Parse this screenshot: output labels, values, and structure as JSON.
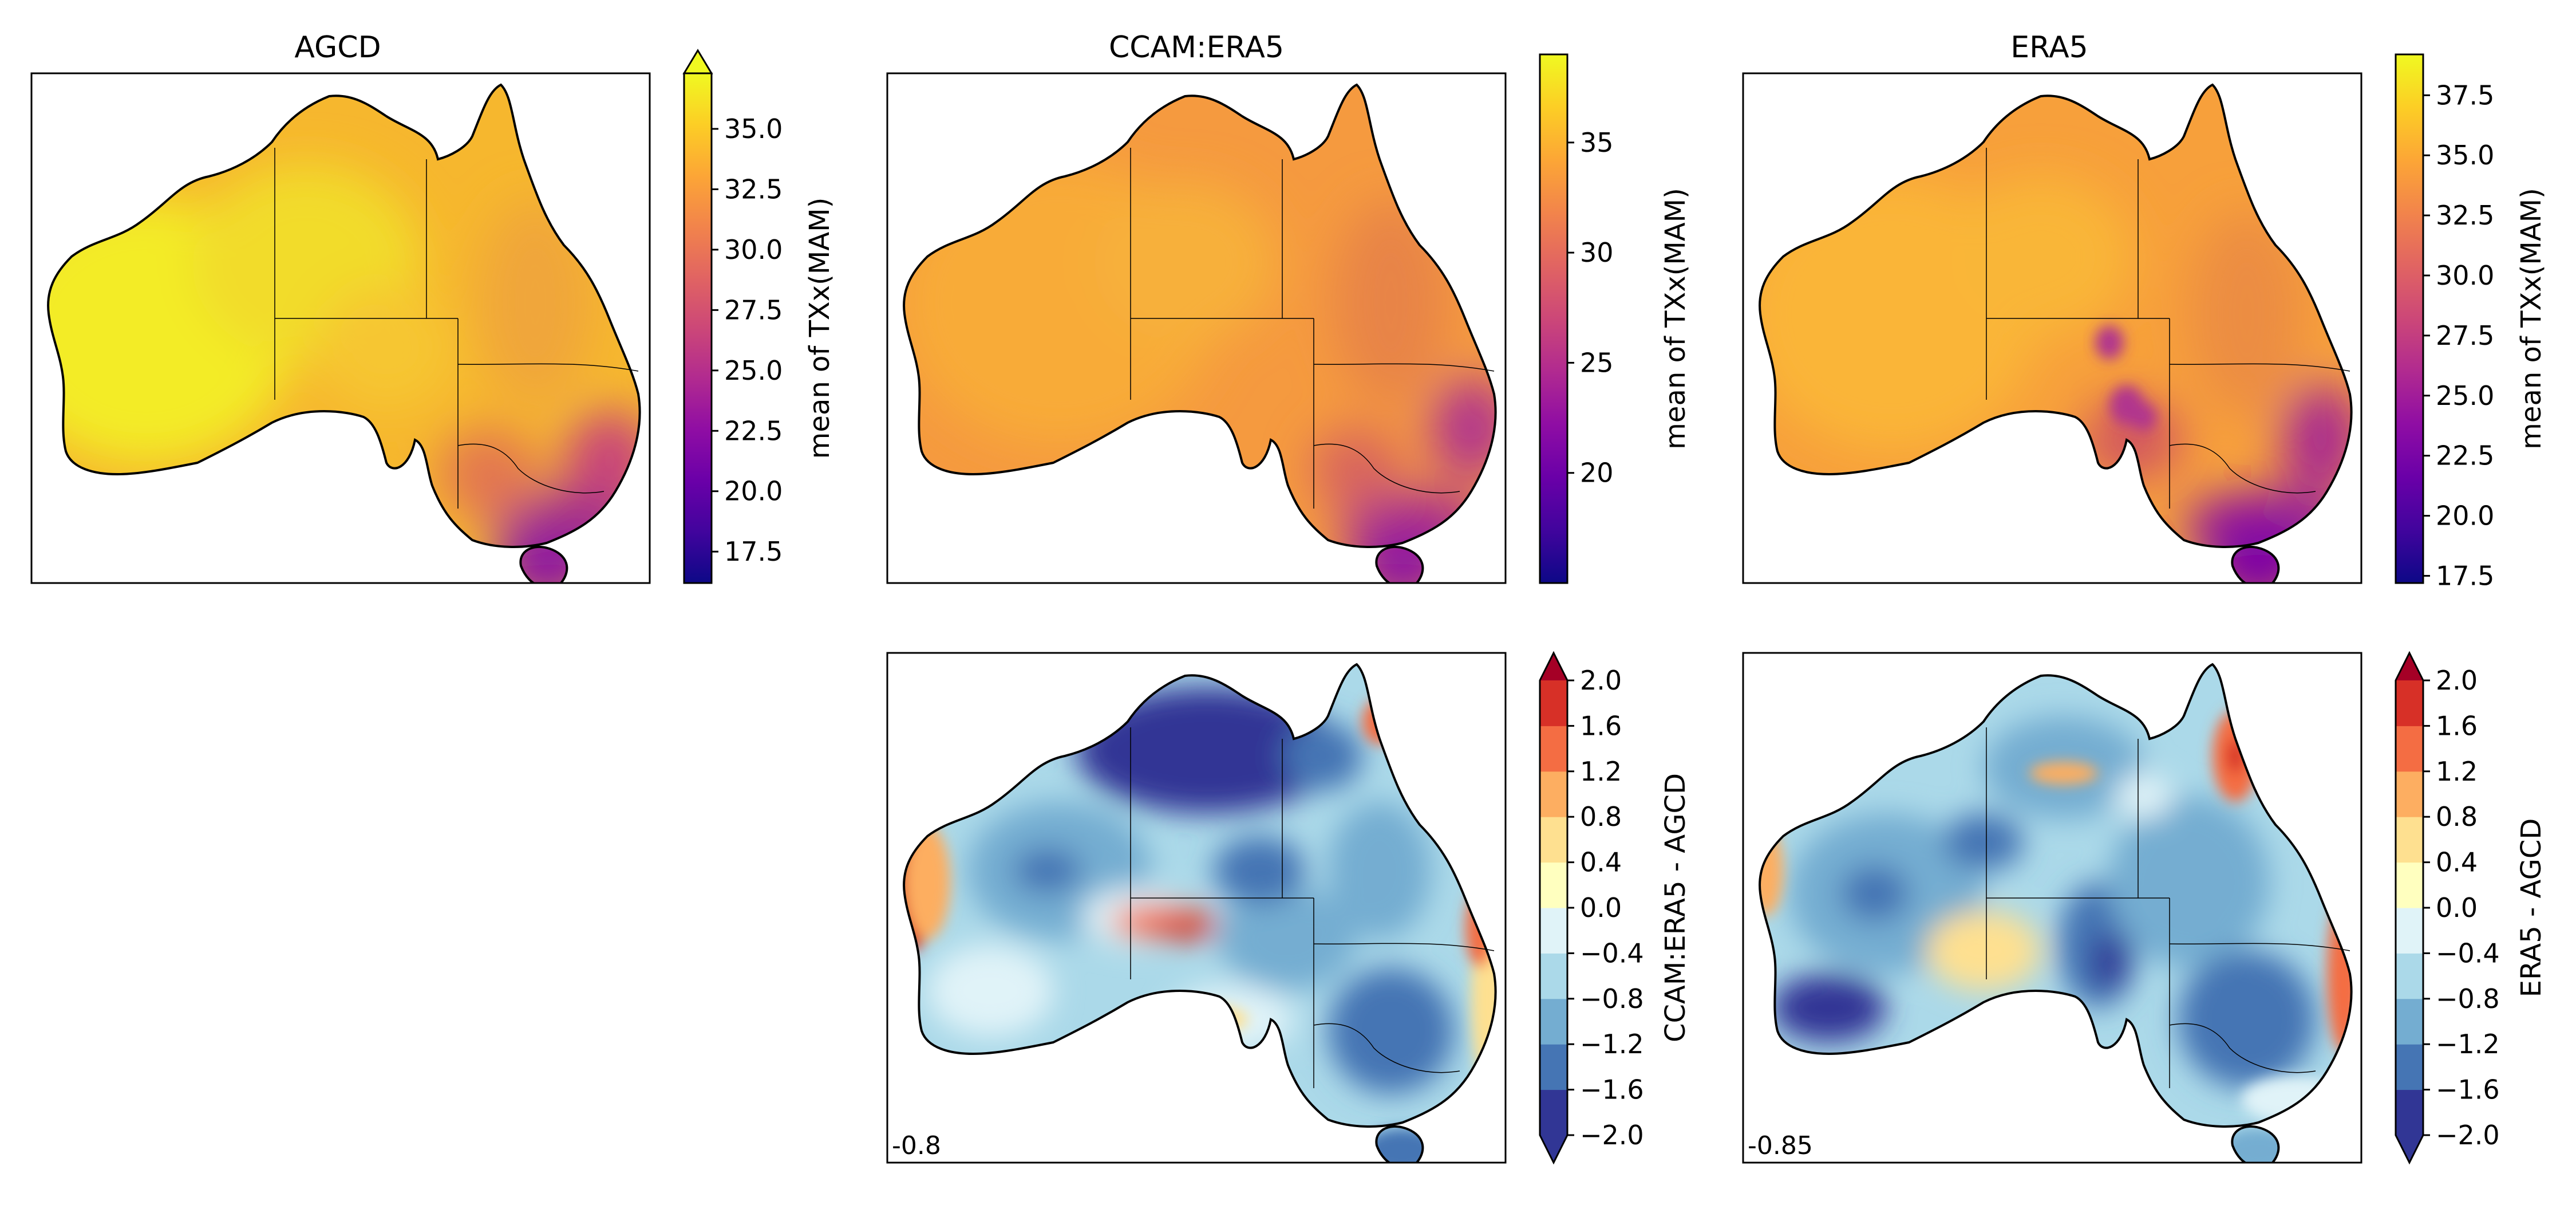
{
  "chart_data": [
    {
      "type": "heatmap",
      "title": "AGCD",
      "colormap": "plasma",
      "colorbar": {
        "label": "mean of TXx(MAM)",
        "range": [
          16.2,
          37.3
        ],
        "ticks": [
          "35.0",
          "32.5",
          "30.0",
          "27.5",
          "25.0",
          "22.5",
          "20.0",
          "17.5"
        ],
        "tick_values": [
          35.0,
          32.5,
          30.0,
          27.5,
          25.0,
          22.5,
          20.0,
          17.5
        ],
        "extend": "max"
      }
    },
    {
      "type": "heatmap",
      "title": "CCAM:ERA5",
      "colormap": "plasma",
      "colorbar": {
        "label": "mean of TXx(MAM)",
        "range": [
          15.0,
          39.0
        ],
        "ticks": [
          "35",
          "30",
          "25",
          "20"
        ],
        "tick_values": [
          35,
          30,
          25,
          20
        ],
        "extend": "neither"
      }
    },
    {
      "type": "heatmap",
      "title": "ERA5",
      "colormap": "plasma",
      "colorbar": {
        "label": "mean of TXx(MAM)",
        "range": [
          17.2,
          39.2
        ],
        "ticks": [
          "37.5",
          "35.0",
          "32.5",
          "30.0",
          "27.5",
          "25.0",
          "22.5",
          "20.0",
          "17.5"
        ],
        "tick_values": [
          37.5,
          35.0,
          32.5,
          30.0,
          27.5,
          25.0,
          22.5,
          20.0,
          17.5
        ],
        "extend": "neither"
      }
    },
    {
      "type": "heatmap",
      "title": "",
      "colormap": "RdYlBu_r (discrete)",
      "annotation": "-0.8",
      "colorbar": {
        "label": "CCAM:ERA5 - AGCD",
        "levels": [
          -2.0,
          -1.6,
          -1.2,
          -0.8,
          -0.4,
          0.0,
          0.4,
          0.8,
          1.2,
          1.6,
          2.0
        ],
        "ticks": [
          "2.0",
          "1.6",
          "1.2",
          "0.8",
          "0.4",
          "0.0",
          "−0.4",
          "−0.8",
          "−1.2",
          "−1.6",
          "−2.0"
        ],
        "extend": "both"
      }
    },
    {
      "type": "heatmap",
      "title": "",
      "colormap": "RdYlBu_r (discrete)",
      "annotation": "-0.85",
      "colorbar": {
        "label": "ERA5 - AGCD",
        "levels": [
          -2.0,
          -1.6,
          -1.2,
          -0.8,
          -0.4,
          0.0,
          0.4,
          0.8,
          1.2,
          1.6,
          2.0
        ],
        "ticks": [
          "2.0",
          "1.6",
          "1.2",
          "0.8",
          "0.4",
          "0.0",
          "−0.4",
          "−0.8",
          "−1.2",
          "−1.6",
          "−2.0"
        ],
        "extend": "both"
      }
    }
  ],
  "colors": {
    "plasma": [
      "#0d0887",
      "#41049d",
      "#6a00a8",
      "#8f0da4",
      "#b12a90",
      "#cc4778",
      "#e16462",
      "#f2844b",
      "#fca636",
      "#fcce25",
      "#f0f921"
    ],
    "diverging": [
      "#313695",
      "#4575b4",
      "#74add1",
      "#abd9e9",
      "#e0f3f8",
      "#ffffbf",
      "#fee090",
      "#fdae61",
      "#f46d43",
      "#d73027",
      "#a50026"
    ],
    "border": "#000000"
  }
}
